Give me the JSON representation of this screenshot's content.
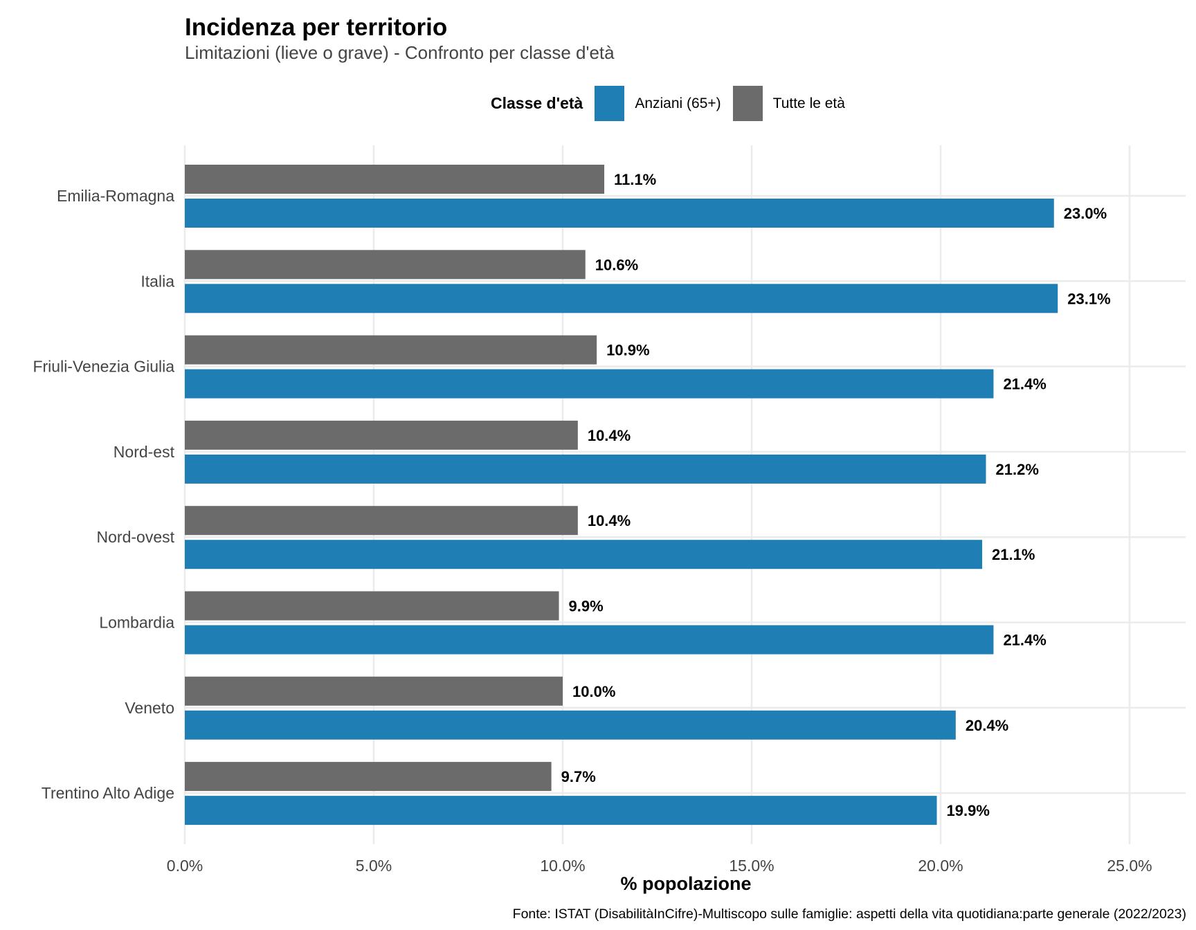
{
  "chart_data": {
    "type": "bar",
    "orientation": "horizontal",
    "title": "Incidenza per territorio",
    "subtitle": "Limitazioni (lieve o grave) - Confronto per classe d'età",
    "xlabel": "% popolazione",
    "ylabel": "",
    "xlim": [
      0,
      26.5
    ],
    "x_ticks": [
      0,
      5,
      10,
      15,
      20,
      25
    ],
    "x_tick_labels": [
      "0.0%",
      "5.0%",
      "10.0%",
      "15.0%",
      "20.0%",
      "25.0%"
    ],
    "grid": true,
    "legend": {
      "title": "Classe d'età",
      "placement": "top",
      "entries": [
        {
          "name": "Anziani (65+)",
          "color": "#1f7eb3"
        },
        {
          "name": "Tutte le età",
          "color": "#6b6b6b"
        }
      ]
    },
    "categories": [
      "Emilia-Romagna",
      "Italia",
      "Friuli-Venezia Giulia",
      "Nord-est",
      "Nord-ovest",
      "Lombardia",
      "Veneto",
      "Trentino Alto Adige"
    ],
    "series": [
      {
        "name": "Tutte le età",
        "color": "#6b6b6b",
        "values": [
          11.1,
          10.6,
          10.9,
          10.4,
          10.4,
          9.9,
          10.0,
          9.7
        ],
        "labels": [
          "11.1%",
          "10.6%",
          "10.9%",
          "10.4%",
          "10.4%",
          "9.9%",
          "10.0%",
          "9.7%"
        ]
      },
      {
        "name": "Anziani (65+)",
        "color": "#1f7eb3",
        "values": [
          23.0,
          23.1,
          21.4,
          21.2,
          21.1,
          21.4,
          20.4,
          19.9
        ],
        "labels": [
          "23.0%",
          "23.1%",
          "21.4%",
          "21.2%",
          "21.1%",
          "21.4%",
          "20.4%",
          "19.9%"
        ]
      }
    ],
    "caption": "Fonte: ISTAT (DisabilitàInCifre)-Multiscopo sulle famiglie: aspetti della vita quotidiana:parte generale (2022/2023)"
  },
  "colors": {
    "grid": "#ebebeb",
    "axis_text": "#444444"
  }
}
